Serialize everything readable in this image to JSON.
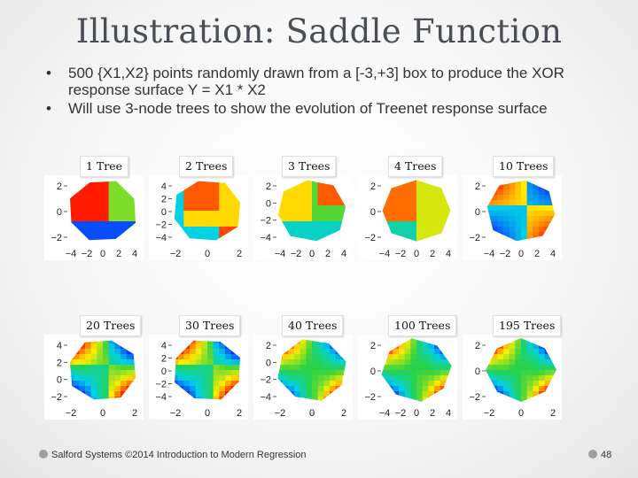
{
  "slide": {
    "title": "Illustration: Saddle Function",
    "bullets": [
      "500 {X1,X2} points randomly drawn from a [-3,+3] box to produce the XOR response surface Y = X1 * X2",
      "Will use 3-node trees to show the evolution of Treenet response surface"
    ],
    "bullet_marker": "•",
    "panels": [
      {
        "label": "1 Tree",
        "y_ticks": [
          "2",
          "0",
          "−2"
        ],
        "x_ticks": [
          "−4",
          "−2",
          "0",
          "2",
          "4"
        ],
        "stage": 1
      },
      {
        "label": "2 Trees",
        "y_ticks": [
          "4",
          "2",
          "0",
          "−2",
          "−4"
        ],
        "x_ticks": [
          "−2",
          "0",
          "2"
        ],
        "stage": 2
      },
      {
        "label": "3 Trees",
        "y_ticks": [
          "2",
          "0",
          "−2",
          "−4"
        ],
        "x_ticks": [
          "−4",
          "−2",
          "0",
          "2",
          "4"
        ],
        "stage": 3
      },
      {
        "label": "4 Trees",
        "y_ticks": [
          "2",
          "0",
          "−2"
        ],
        "x_ticks": [
          "−4",
          "−2",
          "0",
          "2",
          "4"
        ],
        "stage": 4
      },
      {
        "label": "10 Trees",
        "y_ticks": [
          "2",
          "0",
          "−2"
        ],
        "x_ticks": [
          "−4",
          "−2",
          "0",
          "2",
          "4"
        ],
        "stage": 5
      },
      {
        "label": "20 Trees",
        "y_ticks": [
          "4",
          "2",
          "0",
          "−2"
        ],
        "x_ticks": [
          "−2",
          "0",
          "2"
        ],
        "stage": 6
      },
      {
        "label": "30 Trees",
        "y_ticks": [
          "4",
          "2",
          "0",
          "−2",
          "−4"
        ],
        "x_ticks": [
          "−2",
          "0",
          "2"
        ],
        "stage": 7
      },
      {
        "label": "40 Trees",
        "y_ticks": [
          "2",
          "0",
          "−2",
          "−4"
        ],
        "x_ticks": [
          "−2",
          "0",
          "2"
        ],
        "stage": 8
      },
      {
        "label": "100 Trees",
        "y_ticks": [
          "2",
          "0",
          "−2"
        ],
        "x_ticks": [
          "−4",
          "−2",
          "0",
          "2",
          "4"
        ],
        "stage": 9
      },
      {
        "label": "195 Trees",
        "y_ticks": [
          "2",
          "0",
          "−2"
        ],
        "x_ticks": [
          "−2",
          "0",
          "2"
        ],
        "stage": 10
      }
    ],
    "colors": {
      "title": "#4a4f55",
      "surface_high": "#ff1a00",
      "surface_mid": "#ffee00",
      "surface_low": "#0a2cff"
    },
    "footer": "Salford Systems ©2014 Introduction to Modern Regression",
    "page_number": "48"
  }
}
